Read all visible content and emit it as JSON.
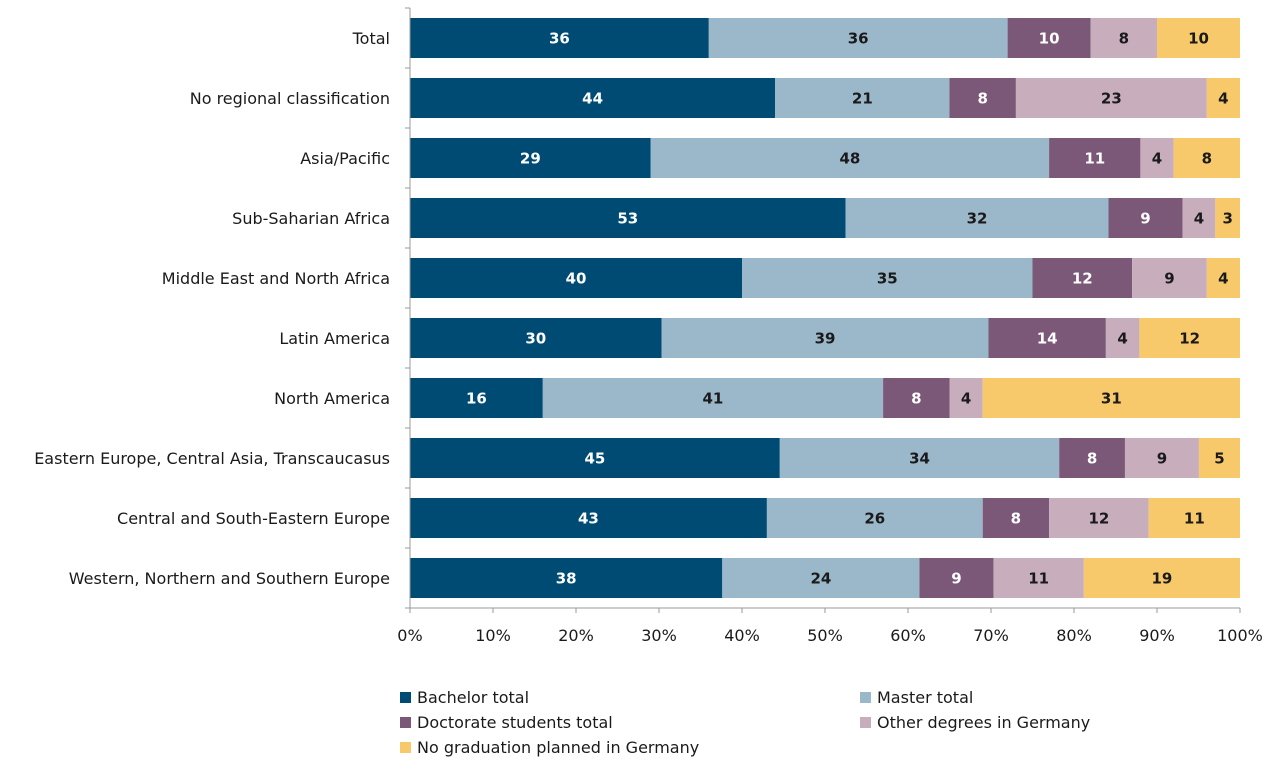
{
  "chart_data": {
    "type": "bar",
    "orientation": "horizontal",
    "stacked": true,
    "percent": true,
    "categories": [
      "Total",
      "No regional classification",
      "Asia/Pacific",
      "Sub-Saharian Africa",
      "Middle East and North Africa",
      "Latin America",
      "North America",
      "Eastern Europe, Central Asia, Transcaucasus",
      "Central and South-Eastern Europe",
      "Western, Northern and Southern Europe"
    ],
    "series": [
      {
        "name": "Bachelor total",
        "color": "#004b73",
        "label_color": "#ffffff",
        "values": [
          36,
          44,
          29,
          53,
          40,
          30,
          16,
          45,
          43,
          38
        ]
      },
      {
        "name": "Master total",
        "color": "#9bb8ca",
        "label_color": "#1a1a1a",
        "values": [
          36,
          21,
          48,
          32,
          35,
          39,
          41,
          34,
          26,
          24
        ]
      },
      {
        "name": "Doctorate students total",
        "color": "#7b5877",
        "label_color": "#ffffff",
        "values": [
          10,
          8,
          11,
          9,
          12,
          14,
          8,
          8,
          8,
          9
        ]
      },
      {
        "name": "Other degrees in Germany",
        "color": "#c8aebd",
        "label_color": "#1a1a1a",
        "values": [
          8,
          23,
          4,
          4,
          9,
          4,
          4,
          9,
          12,
          11
        ]
      },
      {
        "name": "No graduation planned in Germany",
        "color": "#f8c96a",
        "label_color": "#1a1a1a",
        "values": [
          10,
          4,
          8,
          3,
          4,
          12,
          31,
          5,
          11,
          19
        ]
      }
    ],
    "xlim": [
      0,
      100
    ],
    "x_ticks": [
      "0%",
      "10%",
      "20%",
      "30%",
      "40%",
      "50%",
      "60%",
      "70%",
      "80%",
      "90%",
      "100%"
    ],
    "grid": false,
    "legend_position": "bottom"
  }
}
